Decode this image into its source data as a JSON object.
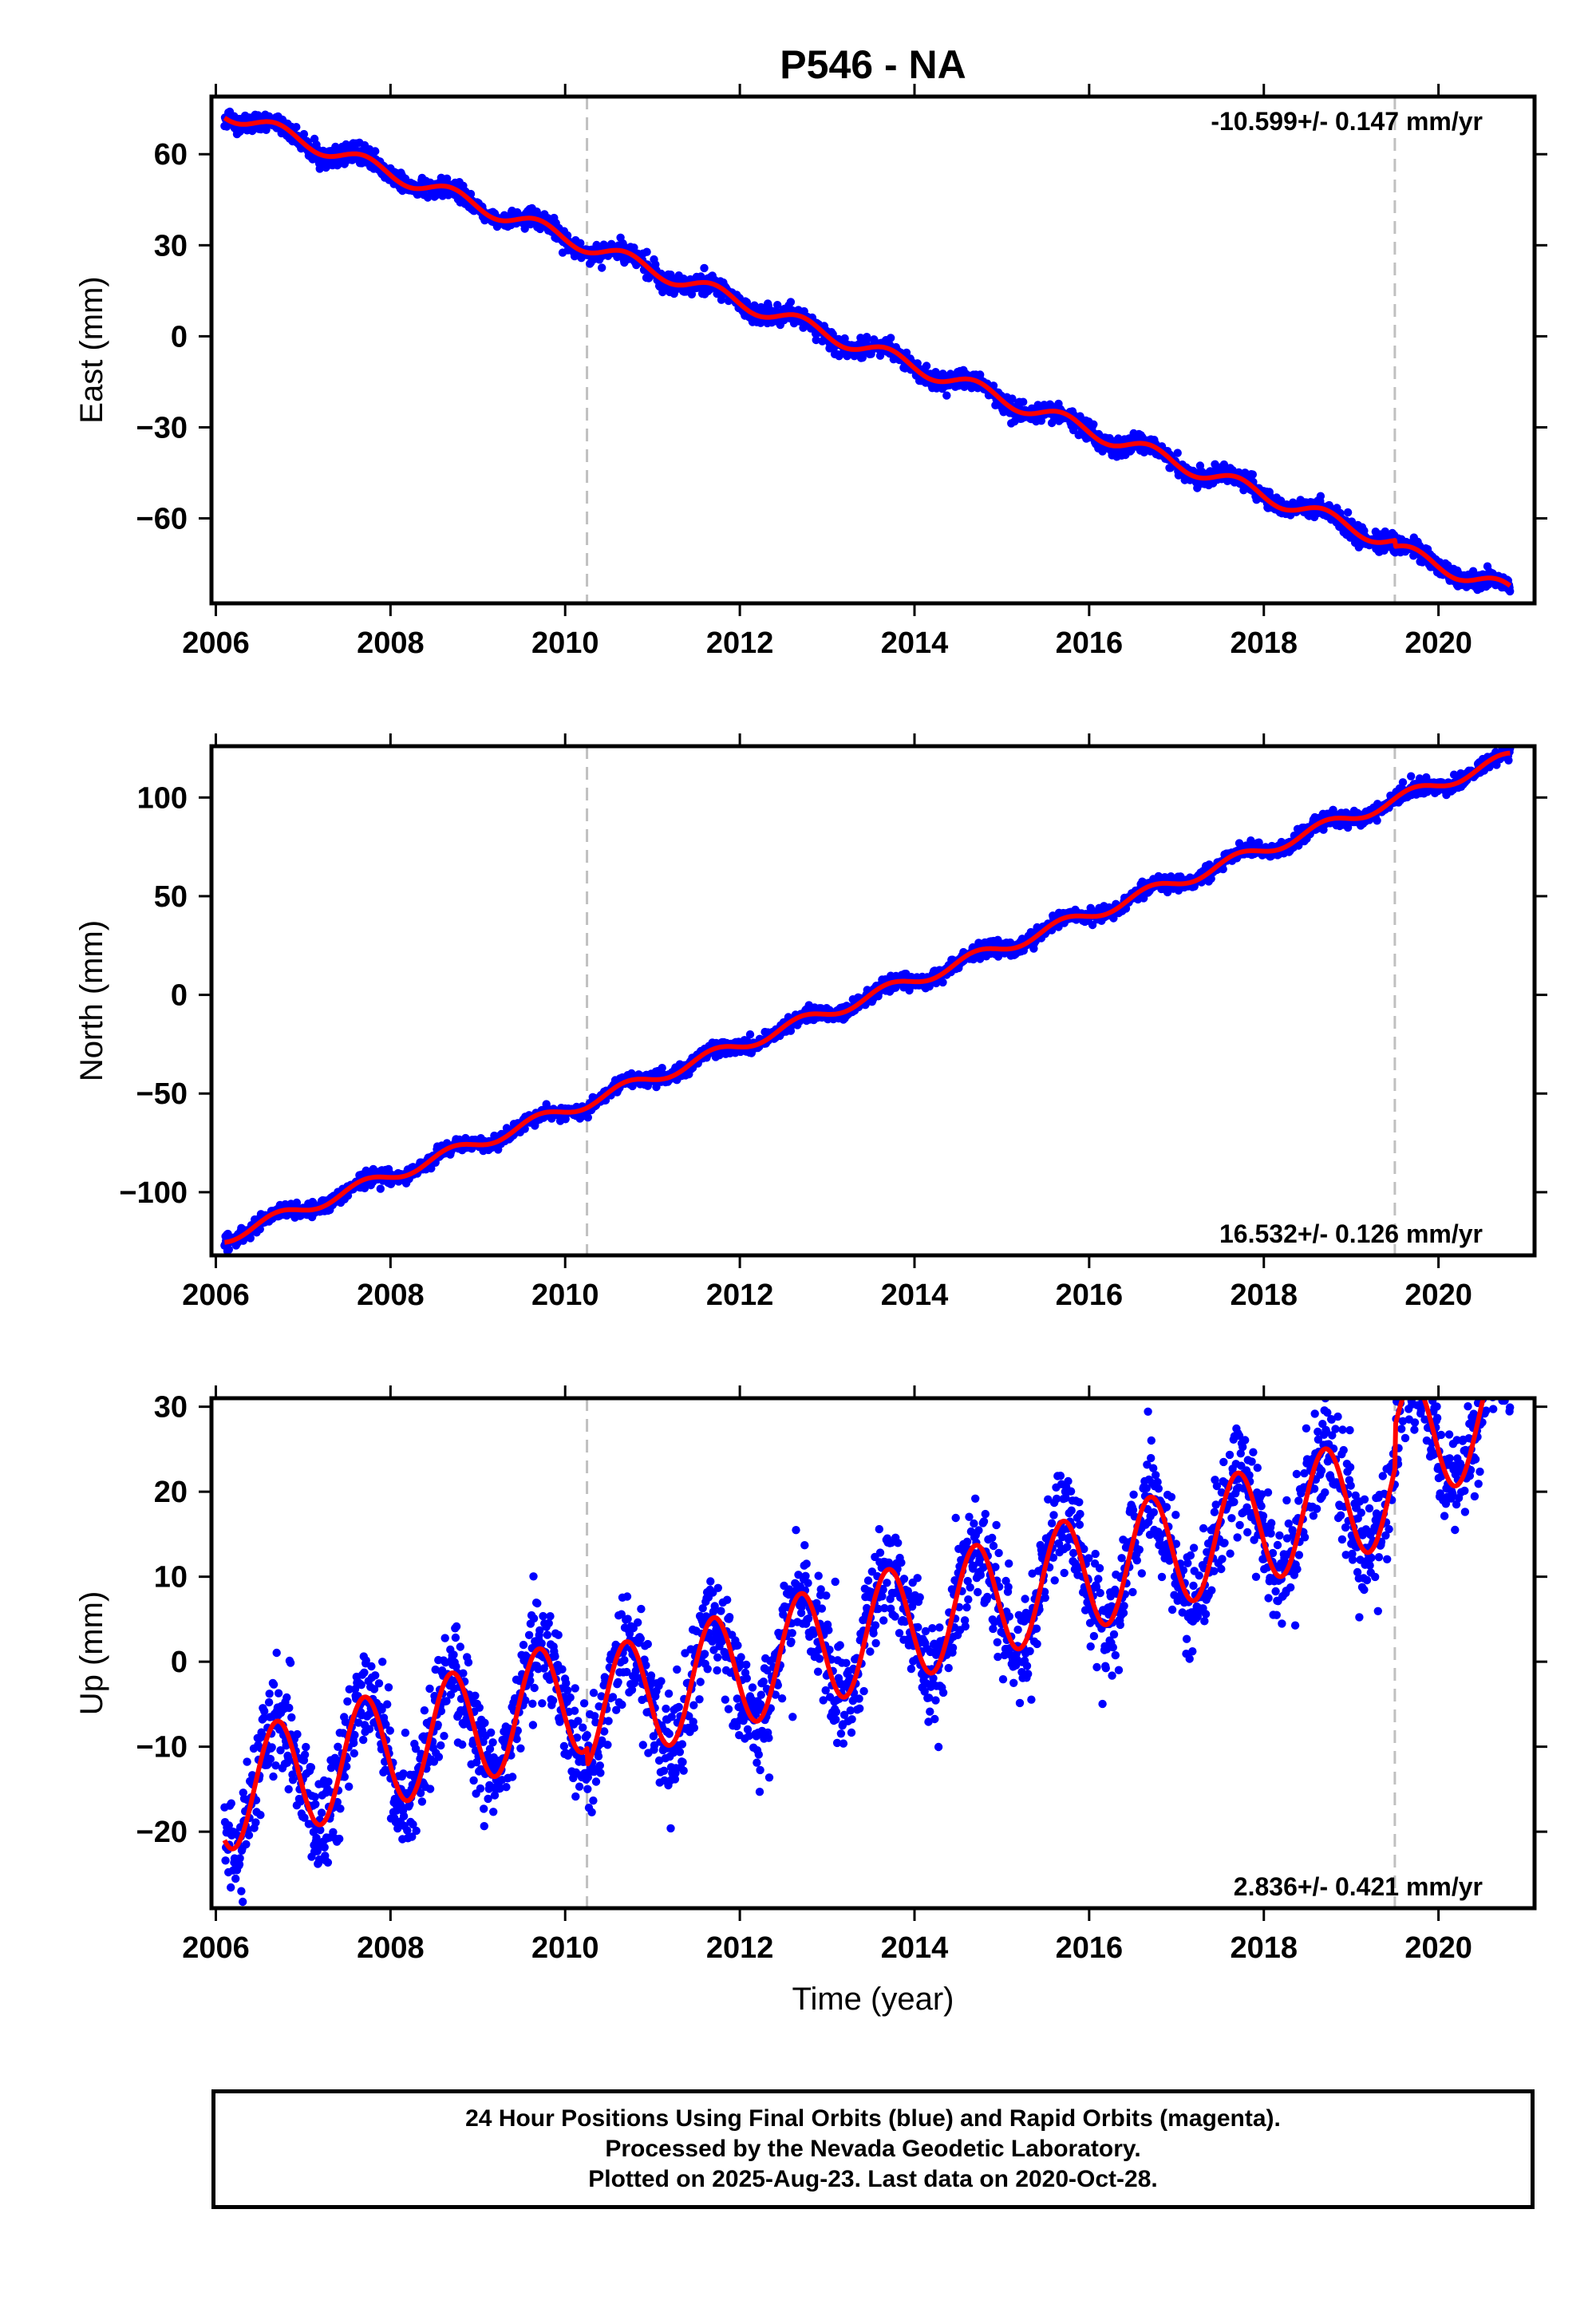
{
  "title": "P546 - NA",
  "xlabel": "Time (year)",
  "colors": {
    "data": "#0000ff",
    "model": "#ff0000",
    "break_line": "#c0c0c0",
    "frame": "#000000"
  },
  "footer": {
    "line1": "24 Hour Positions Using Final Orbits (blue) and Rapid Orbits (magenta).",
    "line2": "Processed by the Nevada Geodetic Laboratory.",
    "line3": "Plotted on 2025-Aug-23. Last data on 2020-Oct-28."
  },
  "chart_data": [
    {
      "type": "scatter",
      "component": "east",
      "ylabel": "East (mm)",
      "velocity_label": "-10.599+/- 0.147 mm/yr",
      "velocity_mm_per_yr": -10.599,
      "velocity_sigma": 0.147,
      "xlim": [
        2005.95,
        2021.1
      ],
      "ylim": [
        -88,
        79
      ],
      "xticks": [
        2006,
        2008,
        2010,
        2012,
        2014,
        2016,
        2018,
        2020
      ],
      "yticks": [
        60,
        30,
        0,
        -30,
        -60
      ],
      "break_epochs": [
        2010.25,
        2019.5
      ],
      "data_start": 2006.1,
      "data_end": 2020.82,
      "model_at_start": 74,
      "seasonal_amplitude_mm": 2.5,
      "scatter_sigma_mm": 1.5,
      "break_offsets_mm": [
        0,
        -2
      ],
      "series": [
        {
          "name": "Final Orbits",
          "style": "points"
        },
        {
          "name": "Model",
          "style": "line"
        }
      ]
    },
    {
      "type": "scatter",
      "component": "north",
      "ylabel": "North (mm)",
      "velocity_label": "16.532+/- 0.126 mm/yr",
      "velocity_mm_per_yr": 16.532,
      "velocity_sigma": 0.126,
      "xlim": [
        2005.95,
        2021.1
      ],
      "ylim": [
        -132,
        126
      ],
      "xticks": [
        2006,
        2008,
        2010,
        2012,
        2014,
        2016,
        2018,
        2020
      ],
      "yticks": [
        100,
        50,
        0,
        -50,
        -100
      ],
      "break_epochs": [
        2010.25,
        2019.5
      ],
      "data_start": 2006.1,
      "data_end": 2020.82,
      "model_at_start": -123,
      "seasonal_amplitude_mm": 3,
      "scatter_sigma_mm": 1.8,
      "break_offsets_mm": [
        0,
        0
      ],
      "series": [
        {
          "name": "Final Orbits",
          "style": "points"
        },
        {
          "name": "Model",
          "style": "line"
        }
      ]
    },
    {
      "type": "scatter",
      "component": "up",
      "ylabel": "Up (mm)",
      "velocity_label": "2.836+/- 0.421 mm/yr",
      "velocity_mm_per_yr": 2.836,
      "velocity_sigma": 0.421,
      "xlim": [
        2005.95,
        2021.1
      ],
      "ylim": [
        -29,
        31
      ],
      "xticks": [
        2006,
        2008,
        2010,
        2012,
        2014,
        2016,
        2018,
        2020
      ],
      "yticks": [
        30,
        20,
        10,
        0,
        -10,
        -20
      ],
      "break_epochs": [
        2010.25,
        2019.5
      ],
      "data_start": 2006.1,
      "data_end": 2020.82,
      "model_at_start": -15.5,
      "seasonal_amplitude_mm": 6.8,
      "scatter_sigma_mm": 3.2,
      "break_offsets_mm": [
        -2,
        5
      ],
      "series": [
        {
          "name": "Final Orbits",
          "style": "points"
        },
        {
          "name": "Model",
          "style": "line"
        }
      ]
    }
  ]
}
